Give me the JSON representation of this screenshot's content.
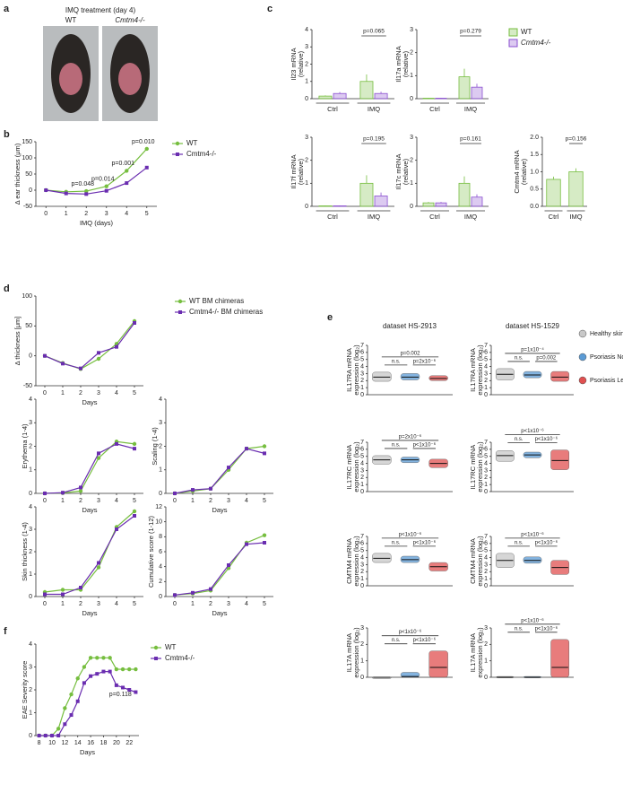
{
  "panel_labels": [
    "a",
    "b",
    "c",
    "d",
    "e",
    "f"
  ],
  "photo": {
    "title": "IMQ treatment (day 4)",
    "labels": [
      "WT",
      "Cmtm4-/-"
    ]
  },
  "e_titles": [
    "dataset HS-2913",
    "dataset HS-1529"
  ],
  "e_legend": [
    {
      "name": "Healthy skin",
      "color": "#c8c8c8"
    },
    {
      "name": "Psoriasis Nonlesional skin",
      "color": "#5b9bd5"
    },
    {
      "name": "Psoriasis Lesional skin",
      "color": "#e05050"
    }
  ],
  "chart_data": [
    {
      "type": "line",
      "ylabel": [
        "Δ ear thickness (μm)"
      ],
      "xlabel": "IMQ (days)",
      "x": [
        0,
        1,
        2,
        3,
        4,
        5
      ],
      "xlim": [
        -0.5,
        5.5
      ],
      "xticks": [
        0,
        1,
        2,
        3,
        4,
        5
      ],
      "ylim": [
        -50,
        150
      ],
      "yticks": [
        -50,
        0,
        50,
        100,
        150
      ],
      "series": [
        {
          "name": "WT",
          "color": "#76be3f",
          "marker": "circle",
          "values": [
            0,
            -5,
            -3,
            12,
            60,
            128
          ]
        },
        {
          "name": "Cmtm4-/-",
          "color": "#6a2db0",
          "marker": "square",
          "values": [
            0,
            -10,
            -12,
            -2,
            22,
            70
          ]
        }
      ],
      "annotations": [
        {
          "text": "p=0.048",
          "x": 2
        },
        {
          "text": "p=0.014",
          "x": 3
        },
        {
          "text": "p=0.001",
          "x": 4
        },
        {
          "text": "p=0.010",
          "x": 5
        }
      ]
    },
    {
      "type": "bar",
      "ylabel": [
        "Il23 mRNA",
        "(relative)"
      ],
      "categories": [
        "Ctrl",
        "IMQ"
      ],
      "ylim": [
        0,
        4
      ],
      "yticks": [
        0,
        1,
        2,
        3,
        4
      ],
      "series": [
        {
          "name": "WT",
          "color": "#76be3f",
          "values": [
            0.15,
            1.0
          ],
          "errors": [
            0.04,
            0.4
          ]
        },
        {
          "name": "Cmtm4-/-",
          "color": "#8a4fd0",
          "values": [
            0.3,
            0.3
          ],
          "errors": [
            0.08,
            0.1
          ]
        }
      ],
      "annotations": [
        {
          "text": "p=0.065"
        }
      ]
    },
    {
      "type": "bar",
      "ylabel": [
        "Il17a mRNA",
        "(relative)"
      ],
      "categories": [
        "Ctrl",
        "IMQ"
      ],
      "ylim": [
        0,
        3
      ],
      "yticks": [
        0,
        1,
        2,
        3
      ],
      "series": [
        {
          "color": "#76be3f",
          "values": [
            0.02,
            0.95
          ],
          "errors": [
            0.01,
            0.35
          ]
        },
        {
          "color": "#8a4fd0",
          "values": [
            0.02,
            0.5
          ],
          "errors": [
            0.01,
            0.15
          ]
        }
      ],
      "annotations": [
        {
          "text": "p=0.279"
        }
      ]
    },
    {
      "type": "bar",
      "ylabel": [
        "Il17f mRNA",
        "(relative)"
      ],
      "categories": [
        "Ctrl",
        "IMQ"
      ],
      "ylim": [
        0,
        3
      ],
      "yticks": [
        0,
        1,
        2,
        3
      ],
      "series": [
        {
          "color": "#76be3f",
          "values": [
            0.02,
            1.0
          ],
          "errors": [
            0.01,
            0.35
          ]
        },
        {
          "color": "#8a4fd0",
          "values": [
            0.02,
            0.45
          ],
          "errors": [
            0.01,
            0.15
          ]
        }
      ],
      "annotations": [
        {
          "text": "p=0.195"
        }
      ]
    },
    {
      "type": "bar",
      "ylabel": [
        "Il17c mRNA",
        "(relative)"
      ],
      "categories": [
        "Ctrl",
        "IMQ"
      ],
      "ylim": [
        0,
        3
      ],
      "yticks": [
        0,
        1,
        2,
        3
      ],
      "series": [
        {
          "color": "#76be3f",
          "values": [
            0.15,
            1.0
          ],
          "errors": [
            0.04,
            0.3
          ]
        },
        {
          "color": "#8a4fd0",
          "values": [
            0.15,
            0.4
          ],
          "errors": [
            0.04,
            0.12
          ]
        }
      ],
      "annotations": [
        {
          "text": "p=0.161"
        }
      ]
    },
    {
      "type": "bar",
      "ylabel": [
        "Cmtm4 mRNA",
        "(relative)"
      ],
      "categories": [
        "Ctrl",
        "IMQ"
      ],
      "ylim": [
        0,
        2
      ],
      "yticks": [
        {
          "value": 0,
          "label": "0.0"
        },
        {
          "value": 0.5,
          "label": "0.5"
        },
        {
          "value": 1,
          "label": "1.0"
        },
        {
          "value": 1.5,
          "label": "1.5"
        },
        {
          "value": 2,
          "label": "2.0"
        }
      ],
      "series": [
        {
          "color": "#76be3f",
          "values": [
            0.78,
            1.0
          ],
          "errors": [
            0.08,
            0.1
          ]
        }
      ],
      "annotations": [
        {
          "text": "p=0.156"
        }
      ]
    },
    {
      "type": "line",
      "ylabel": [
        "Δ thickness [μm]"
      ],
      "xlabel": "Days",
      "x": [
        0,
        1,
        2,
        3,
        4,
        5
      ],
      "xlim": [
        -0.5,
        5.5
      ],
      "xticks": [
        0,
        1,
        2,
        3,
        4,
        5
      ],
      "ylim": [
        -50,
        100
      ],
      "yticks": [
        -50,
        0,
        50,
        100
      ],
      "series": [
        {
          "name": "WT BM chimeras",
          "color": "#76be3f",
          "marker": "circle",
          "values": [
            0,
            -12,
            -22,
            -5,
            20,
            58
          ]
        },
        {
          "name": "Cmtm4-/- BM chimeras",
          "color": "#6a2db0",
          "marker": "square",
          "values": [
            0,
            -13,
            -21,
            5,
            15,
            55
          ]
        }
      ]
    },
    {
      "type": "line",
      "ylabel": [
        "Erythema (1-4)"
      ],
      "xlabel": "Days",
      "x": [
        0,
        1,
        2,
        3,
        4,
        5
      ],
      "xlim": [
        -0.5,
        5.5
      ],
      "xticks": [
        0,
        1,
        2,
        3,
        4,
        5
      ],
      "ylim": [
        0,
        4
      ],
      "yticks": [
        0,
        1,
        2,
        3,
        4
      ],
      "series": [
        {
          "color": "#76be3f",
          "marker": "circle",
          "values": [
            0,
            0.02,
            0.1,
            1.5,
            2.2,
            2.1
          ]
        },
        {
          "color": "#6a2db0",
          "marker": "square",
          "values": [
            0,
            0.03,
            0.25,
            1.7,
            2.1,
            1.9
          ]
        }
      ]
    },
    {
      "type": "line",
      "ylabel": [
        "Scaling (1-4)"
      ],
      "xlabel": "Days",
      "x": [
        0,
        1,
        2,
        3,
        4,
        5
      ],
      "xlim": [
        -0.5,
        5.5
      ],
      "xticks": [
        0,
        1,
        2,
        3,
        4,
        5
      ],
      "ylim": [
        0,
        4
      ],
      "yticks": [
        0,
        1,
        2,
        3,
        4
      ],
      "series": [
        {
          "color": "#76be3f",
          "marker": "circle",
          "values": [
            0,
            0.1,
            0.2,
            1.0,
            1.9,
            2.0
          ]
        },
        {
          "color": "#6a2db0",
          "marker": "square",
          "values": [
            0,
            0.15,
            0.2,
            1.1,
            1.9,
            1.7
          ]
        }
      ]
    },
    {
      "type": "line",
      "ylabel": [
        "Skin thickness (1-4)"
      ],
      "xlabel": "Days",
      "x": [
        0,
        1,
        2,
        3,
        4,
        5
      ],
      "xlim": [
        -0.5,
        5.5
      ],
      "xticks": [
        0,
        1,
        2,
        3,
        4,
        5
      ],
      "ylim": [
        0,
        4
      ],
      "yticks": [
        0,
        1,
        2,
        3,
        4
      ],
      "series": [
        {
          "color": "#76be3f",
          "marker": "circle",
          "values": [
            0.2,
            0.3,
            0.3,
            1.3,
            3.1,
            3.8
          ]
        },
        {
          "color": "#6a2db0",
          "marker": "square",
          "values": [
            0.1,
            0.1,
            0.4,
            1.5,
            3.0,
            3.6
          ]
        }
      ]
    },
    {
      "type": "line",
      "ylabel": [
        "Cumulative score (1-12)"
      ],
      "xlabel": "Days",
      "x": [
        0,
        1,
        2,
        3,
        4,
        5
      ],
      "xlim": [
        -0.5,
        5.5
      ],
      "xticks": [
        0,
        1,
        2,
        3,
        4,
        5
      ],
      "ylim": [
        0,
        12
      ],
      "yticks": [
        0,
        2,
        4,
        6,
        8,
        10,
        12
      ],
      "series": [
        {
          "color": "#76be3f",
          "marker": "circle",
          "values": [
            0.2,
            0.4,
            0.8,
            3.8,
            7.2,
            8.2
          ]
        },
        {
          "color": "#6a2db0",
          "marker": "square",
          "values": [
            0.2,
            0.5,
            1.0,
            4.2,
            7.0,
            7.2
          ]
        }
      ]
    },
    {
      "type": "strip",
      "ylabel": [
        "IL17RA mRNA",
        "expression (log₂)"
      ],
      "ylim": [
        0,
        7
      ],
      "yticks": [
        0,
        1,
        2,
        3,
        4,
        5,
        6,
        7
      ],
      "values": [
        2.5,
        2.5,
        2.3
      ],
      "ranges": [
        [
          1.9,
          3.2
        ],
        [
          2.1,
          3.0
        ],
        [
          2.0,
          2.7
        ]
      ],
      "annotations": [
        "p=0.002",
        "n.s.",
        "p=2x10⁻⁶"
      ]
    },
    {
      "type": "strip",
      "ylabel": [
        "IL17RA mRNA",
        "expression (log₂)"
      ],
      "ylim": [
        0,
        7
      ],
      "yticks": [
        0,
        1,
        2,
        3,
        4,
        5,
        6,
        7
      ],
      "values": [
        2.9,
        2.8,
        2.5
      ],
      "ranges": [
        [
          2.1,
          3.7
        ],
        [
          2.4,
          3.3
        ],
        [
          1.9,
          3.3
        ]
      ],
      "annotations": [
        "p=1x10⁻⁴",
        "n.s.",
        "p=0.002"
      ]
    },
    {
      "type": "strip",
      "ylabel": [
        "IL17RC mRNA",
        "expression (log₂)"
      ],
      "ylim": [
        0,
        7
      ],
      "yticks": [
        0,
        1,
        2,
        3,
        4,
        5,
        6,
        7
      ],
      "values": [
        4.5,
        4.5,
        4.0
      ],
      "ranges": [
        [
          3.9,
          5.1
        ],
        [
          4.1,
          4.9
        ],
        [
          3.4,
          4.6
        ]
      ],
      "annotations": [
        "p=2x10⁻⁶",
        "n.s.",
        "p<1x10⁻⁶"
      ]
    },
    {
      "type": "strip",
      "ylabel": [
        "IL17RC mRNA",
        "expression (log₂)"
      ],
      "ylim": [
        0,
        7
      ],
      "yticks": [
        0,
        1,
        2,
        3,
        4,
        5,
        6,
        7
      ],
      "values": [
        5.1,
        5.2,
        4.4
      ],
      "ranges": [
        [
          4.3,
          5.8
        ],
        [
          4.8,
          5.6
        ],
        [
          3.1,
          5.9
        ]
      ],
      "annotations": [
        "p<1x10⁻⁶",
        "n.s.",
        "p<1x10⁻⁶"
      ]
    },
    {
      "type": "strip",
      "ylabel": [
        "CMTM4 mRNA",
        "expression (log₂)"
      ],
      "ylim": [
        0,
        7
      ],
      "yticks": [
        0,
        1,
        2,
        3,
        4,
        5,
        6,
        7
      ],
      "values": [
        3.9,
        3.7,
        2.7
      ],
      "ranges": [
        [
          3.3,
          4.6
        ],
        [
          3.3,
          4.2
        ],
        [
          2.1,
          3.3
        ]
      ],
      "annotations": [
        "p<1x10⁻⁶",
        "n.s.",
        "p<1x10⁻⁶"
      ]
    },
    {
      "type": "strip",
      "ylabel": [
        "CMTM4 mRNA",
        "expression (log₂)"
      ],
      "ylim": [
        0,
        7
      ],
      "yticks": [
        0,
        1,
        2,
        3,
        4,
        5,
        6,
        7
      ],
      "values": [
        3.6,
        3.6,
        2.6
      ],
      "ranges": [
        [
          2.6,
          4.6
        ],
        [
          3.2,
          4.1
        ],
        [
          1.6,
          3.6
        ]
      ],
      "annotations": [
        "p<1x10⁻⁶",
        "n.s.",
        "p<1x10⁻⁶"
      ]
    },
    {
      "type": "strip",
      "ylabel": [
        "IL17A mRNA",
        "expression (log₂)"
      ],
      "ylim": [
        0,
        3
      ],
      "yticks": [
        0,
        1,
        2,
        3
      ],
      "values": [
        0,
        0.05,
        0.6
      ],
      "ranges": [
        [
          0,
          0
        ],
        [
          0,
          0.3
        ],
        [
          0,
          1.6
        ]
      ],
      "annotations": [
        "p<1x10⁻⁶",
        "n.s.",
        "p<1x10⁻⁶"
      ]
    },
    {
      "type": "strip",
      "ylabel": [
        "IL17A mRNA",
        "expression (log₂)"
      ],
      "ylim": [
        0,
        3
      ],
      "yticks": [
        0,
        1,
        2,
        3
      ],
      "values": [
        0,
        0,
        0.6
      ],
      "ranges": [
        [
          0,
          0.05
        ],
        [
          0,
          0.05
        ],
        [
          0,
          2.3
        ]
      ],
      "annotations": [
        "p<1x10⁻⁶",
        "n.s.",
        "p<1x10⁻⁶"
      ]
    },
    {
      "type": "line",
      "ylabel": [
        "EAE Severity score"
      ],
      "xlabel": "Days",
      "x": [
        8,
        9,
        10,
        11,
        12,
        13,
        14,
        15,
        16,
        17,
        18,
        19,
        20,
        21,
        22,
        23
      ],
      "xlim": [
        7.5,
        23.5
      ],
      "xticks": [
        8,
        10,
        12,
        14,
        16,
        18,
        20,
        22
      ],
      "ylim": [
        0,
        4
      ],
      "yticks": [
        0,
        1,
        2,
        3,
        4
      ],
      "series": [
        {
          "name": "WT",
          "color": "#76be3f",
          "marker": "circle",
          "values": [
            0,
            0,
            0,
            0.3,
            1.2,
            1.8,
            2.5,
            3.0,
            3.4,
            3.4,
            3.4,
            3.4,
            2.9,
            2.9,
            2.9,
            2.9
          ]
        },
        {
          "name": "Cmtm4-/-",
          "color": "#6a2db0",
          "marker": "square",
          "values": [
            0,
            0,
            0,
            0,
            0.5,
            0.9,
            1.5,
            2.3,
            2.6,
            2.7,
            2.8,
            2.8,
            2.2,
            2.1,
            2.0,
            1.9
          ]
        }
      ],
      "annotations": [
        {
          "text": "p=0.118"
        }
      ]
    }
  ]
}
